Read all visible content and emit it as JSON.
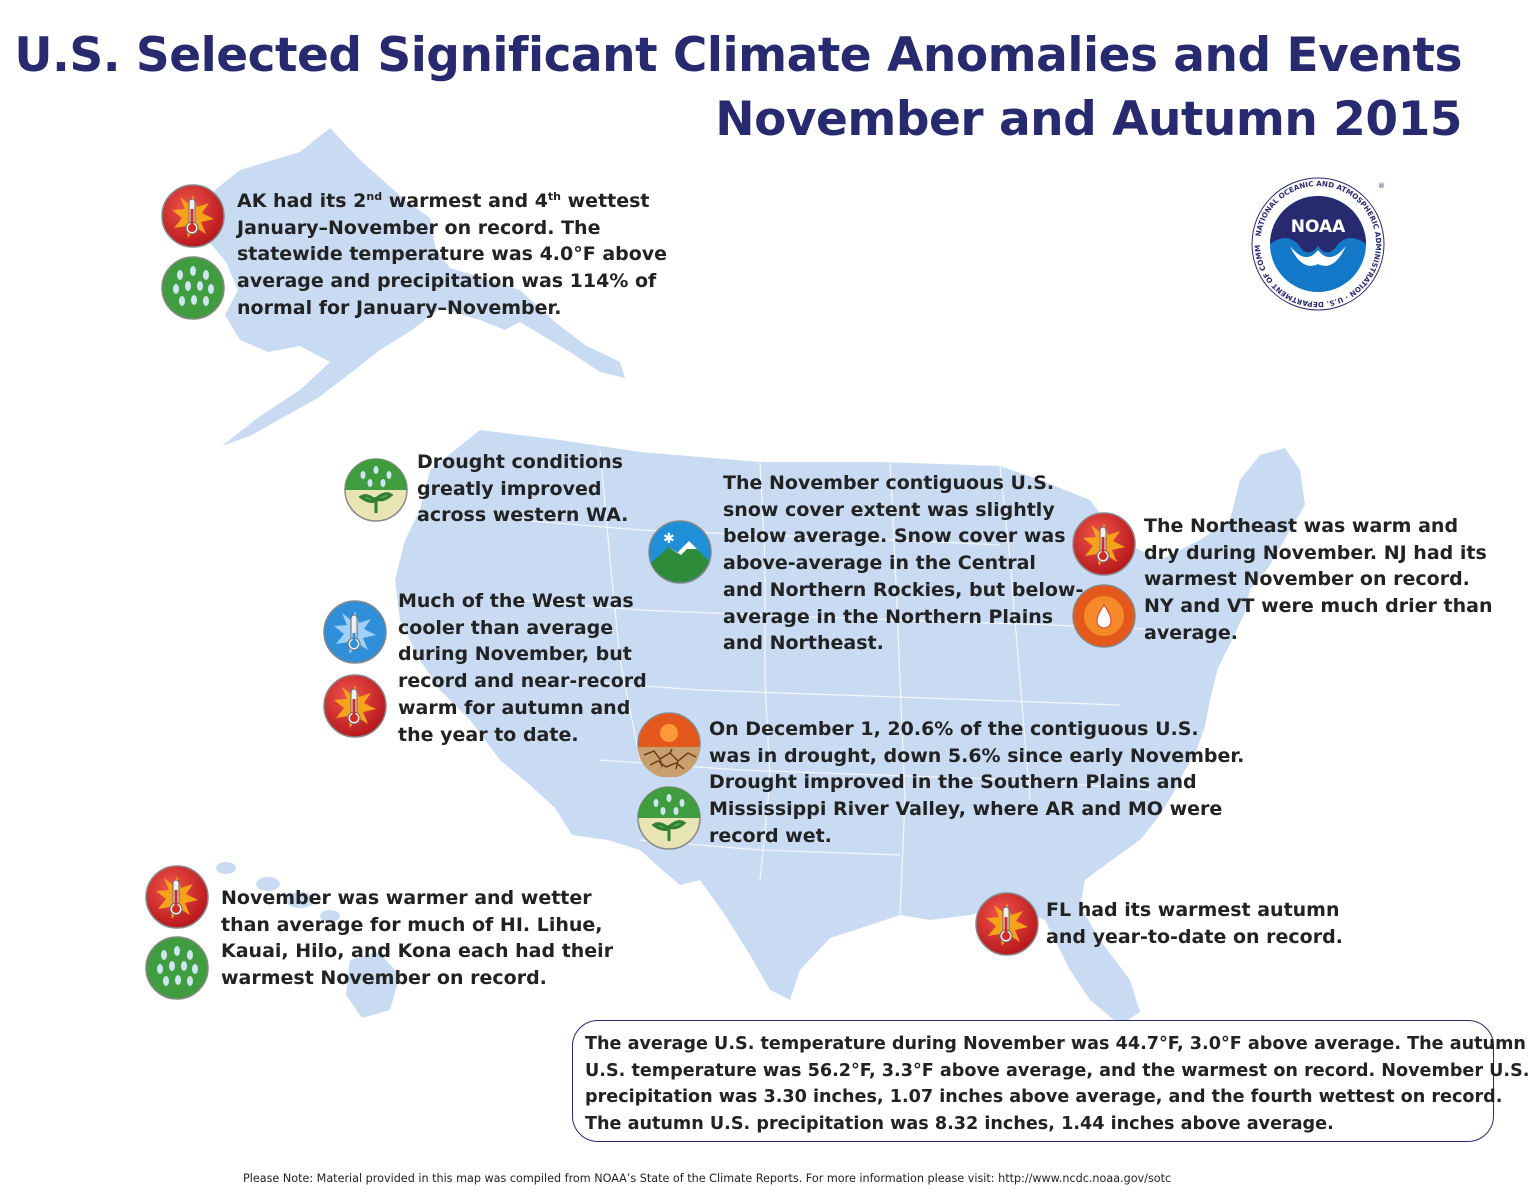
{
  "title": "U.S. Selected Significant Climate Anomalies and Events",
  "subtitle": "November and Autumn 2015",
  "logo": {
    "center_text": "NOAA",
    "ring_text": "NATIONAL OCEANIC AND ATMOSPHERIC ADMINISTRATION · U.S. DEPARTMENT OF COMMERCE",
    "registered": "®"
  },
  "colors": {
    "title": "#272a6e",
    "land": "#c8dbf2",
    "warm": "#d42a26",
    "wet": "#3f9c3f",
    "cool": "#2f8fd8",
    "dry": "#e4581c"
  },
  "events": [
    {
      "id": "alaska",
      "icons": [
        "warm-thermometer-icon",
        "wet-rain-icon"
      ],
      "lines": [
        {
          "pre": "AK had its 2",
          "sup": "nd",
          "mid": " warmest and 4",
          "sup2": "th",
          "post": " wettest"
        },
        "January–November on record. The",
        "statewide temperature was 4.0°F above",
        "average and precipitation was 114% of",
        "normal for January–November."
      ]
    },
    {
      "id": "washington",
      "icons": [
        "drought-improvement-icon"
      ],
      "lines": [
        "Drought conditions",
        "greatly improved",
        "across western WA."
      ]
    },
    {
      "id": "west",
      "icons": [
        "cool-thermometer-icon",
        "warm-thermometer-icon"
      ],
      "lines": [
        "Much of the West was",
        "cooler than average",
        "during November, but",
        "record and near-record",
        "warm for autumn and",
        "the year to date."
      ]
    },
    {
      "id": "snow",
      "icons": [
        "snow-cover-icon"
      ],
      "lines": [
        "The November contiguous U.S.",
        "snow cover extent was slightly",
        "below average. Snow cover was",
        "above-average in the Central",
        "and Northern Rockies, but below-",
        "average in the Northern Plains",
        "and Northeast."
      ]
    },
    {
      "id": "northeast",
      "icons": [
        "warm-thermometer-icon",
        "dry-droplet-icon"
      ],
      "lines": [
        "The Northeast was warm and",
        "dry during November. NJ had its",
        "warmest November on record.",
        "NY and VT were much drier than",
        "average."
      ]
    },
    {
      "id": "drought",
      "icons": [
        "drought-icon",
        "drought-improvement-icon"
      ],
      "lines": [
        "On December 1, 20.6% of the contiguous U.S.",
        "was in drought, down 5.6% since early November.",
        "Drought improved in the Southern Plains and",
        "Mississippi River Valley, where AR and MO were",
        "record wet."
      ]
    },
    {
      "id": "hawaii",
      "icons": [
        "warm-thermometer-icon",
        "wet-rain-icon"
      ],
      "lines": [
        "November was warmer and wetter",
        "than average for much of HI. Lihue,",
        "Kauai, Hilo, and Kona each had their",
        "warmest November on record."
      ]
    },
    {
      "id": "florida",
      "icons": [
        "warm-thermometer-icon"
      ],
      "lines": [
        "FL had its warmest autumn",
        "and year-to-date on record."
      ]
    }
  ],
  "summary": [
    "The average U.S. temperature during November was 44.7°F, 3.0°F above average. The autumn",
    "U.S. temperature was 56.2°F, 3.3°F above average, and the warmest on record. November U.S.",
    "precipitation was 3.30 inches, 1.07 inches above average, and the fourth wettest on record.",
    "The autumn U.S. precipitation was 8.32 inches, 1.44 inches above average."
  ],
  "footer": "Please Note: Material provided in this map was compiled from NOAA’s State of the Climate Reports. For more information please visit: http://www.ncdc.noaa.gov/sotc"
}
